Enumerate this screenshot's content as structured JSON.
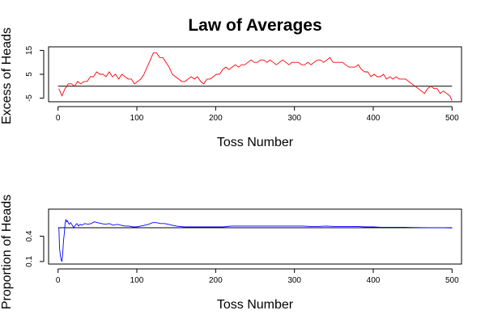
{
  "page": {
    "title": "Law of Averages"
  },
  "chart_data": [
    {
      "type": "line",
      "title": "Law of Averages",
      "xlabel": "Toss Number",
      "ylabel": "Excess of Heads",
      "xlim": [
        -12,
        512
      ],
      "ylim": [
        -6.5,
        16.5
      ],
      "xticks": [
        0,
        100,
        200,
        300,
        400,
        500
      ],
      "xtick_labels": [
        "0",
        "100",
        "200",
        "300",
        "400",
        "500"
      ],
      "yticks": [
        -5,
        5,
        15
      ],
      "ytick_labels": [
        "-5",
        "5",
        "15"
      ],
      "reference_line": 0,
      "grid": false,
      "series": [
        {
          "color": "#ff0000",
          "x": [
            1,
            5,
            9,
            13,
            17,
            21,
            25,
            29,
            33,
            37,
            41,
            45,
            49,
            53,
            57,
            61,
            65,
            69,
            73,
            77,
            81,
            85,
            89,
            93,
            97,
            101,
            105,
            109,
            113,
            117,
            121,
            125,
            129,
            133,
            137,
            141,
            145,
            149,
            153,
            157,
            161,
            165,
            169,
            173,
            177,
            181,
            185,
            189,
            193,
            197,
            201,
            205,
            209,
            213,
            217,
            221,
            225,
            229,
            233,
            237,
            241,
            245,
            249,
            253,
            257,
            261,
            265,
            269,
            273,
            277,
            281,
            285,
            289,
            293,
            297,
            301,
            305,
            309,
            313,
            317,
            321,
            325,
            329,
            333,
            337,
            341,
            345,
            349,
            353,
            357,
            361,
            365,
            369,
            373,
            377,
            381,
            385,
            389,
            393,
            397,
            401,
            405,
            409,
            413,
            417,
            421,
            425,
            429,
            433,
            437,
            441,
            445,
            449,
            453,
            457,
            461,
            465,
            469,
            473,
            477,
            481,
            485,
            489,
            493,
            497,
            500
          ],
          "y": [
            -1,
            -4,
            -1,
            1,
            1,
            0,
            2,
            1,
            2,
            2,
            4,
            4,
            6,
            5,
            5,
            4,
            6,
            4,
            5,
            3,
            5,
            4,
            3,
            3,
            1,
            2,
            3,
            5,
            8,
            11,
            14,
            14,
            12,
            12,
            10,
            8,
            5,
            4,
            3,
            2,
            2,
            3,
            4,
            3,
            4,
            2,
            1,
            3,
            3,
            4,
            5,
            5,
            7,
            8,
            7,
            8,
            9,
            8,
            9,
            9,
            10,
            11,
            10,
            10,
            11,
            11,
            10,
            11,
            10,
            9,
            10,
            11,
            10,
            9,
            10,
            10,
            10,
            9,
            9,
            10,
            9,
            10,
            11,
            11,
            10,
            11,
            12,
            10,
            10,
            10,
            10,
            9,
            8,
            8,
            8,
            9,
            7,
            6,
            6,
            4,
            5,
            4,
            4,
            5,
            3,
            4,
            3,
            4,
            3,
            3,
            3,
            2,
            1,
            0,
            -1,
            -2,
            -3,
            -1,
            0,
            -1,
            -1,
            -3,
            -2,
            -3,
            -4,
            -6
          ]
        }
      ]
    },
    {
      "type": "line",
      "title": "",
      "xlabel": "Toss Number",
      "ylabel": "Proportion of Heads",
      "xlim": [
        -12,
        512
      ],
      "ylim": [
        0.07,
        0.72
      ],
      "xticks": [
        0,
        100,
        200,
        300,
        400,
        500
      ],
      "xtick_labels": [
        "0",
        "100",
        "200",
        "300",
        "400",
        "500"
      ],
      "yticks": [
        0.1,
        0.4
      ],
      "ytick_labels": [
        "0.1",
        "0.4"
      ],
      "reference_line": 0.5,
      "grid": false,
      "series": [
        {
          "color": "#0000ff",
          "x": [
            1,
            2,
            3,
            4,
            5,
            6,
            7,
            8,
            9,
            10,
            11,
            12,
            14,
            16,
            18,
            20,
            22,
            24,
            26,
            28,
            30,
            34,
            38,
            42,
            46,
            50,
            55,
            60,
            65,
            70,
            75,
            80,
            85,
            90,
            95,
            100,
            105,
            110,
            115,
            120,
            125,
            130,
            135,
            140,
            145,
            150,
            160,
            170,
            180,
            190,
            200,
            210,
            220,
            230,
            240,
            250,
            260,
            270,
            280,
            290,
            300,
            310,
            320,
            330,
            340,
            350,
            360,
            370,
            380,
            390,
            400,
            410,
            420,
            430,
            440,
            450,
            460,
            470,
            480,
            490,
            500
          ],
          "y": [
            0.5,
            0.25,
            0.17,
            0.12,
            0.1,
            0.2,
            0.35,
            0.44,
            0.55,
            0.6,
            0.57,
            0.58,
            0.54,
            0.56,
            0.53,
            0.5,
            0.53,
            0.55,
            0.52,
            0.54,
            0.53,
            0.55,
            0.54,
            0.55,
            0.57,
            0.56,
            0.55,
            0.54,
            0.55,
            0.53,
            0.54,
            0.53,
            0.52,
            0.52,
            0.51,
            0.51,
            0.52,
            0.53,
            0.54,
            0.56,
            0.56,
            0.55,
            0.55,
            0.54,
            0.53,
            0.52,
            0.51,
            0.51,
            0.51,
            0.51,
            0.51,
            0.51,
            0.52,
            0.52,
            0.52,
            0.52,
            0.52,
            0.52,
            0.52,
            0.52,
            0.52,
            0.52,
            0.515,
            0.515,
            0.52,
            0.515,
            0.515,
            0.515,
            0.515,
            0.51,
            0.51,
            0.505,
            0.505,
            0.505,
            0.505,
            0.503,
            0.502,
            0.5,
            0.5,
            0.5,
            0.497
          ]
        }
      ]
    }
  ]
}
